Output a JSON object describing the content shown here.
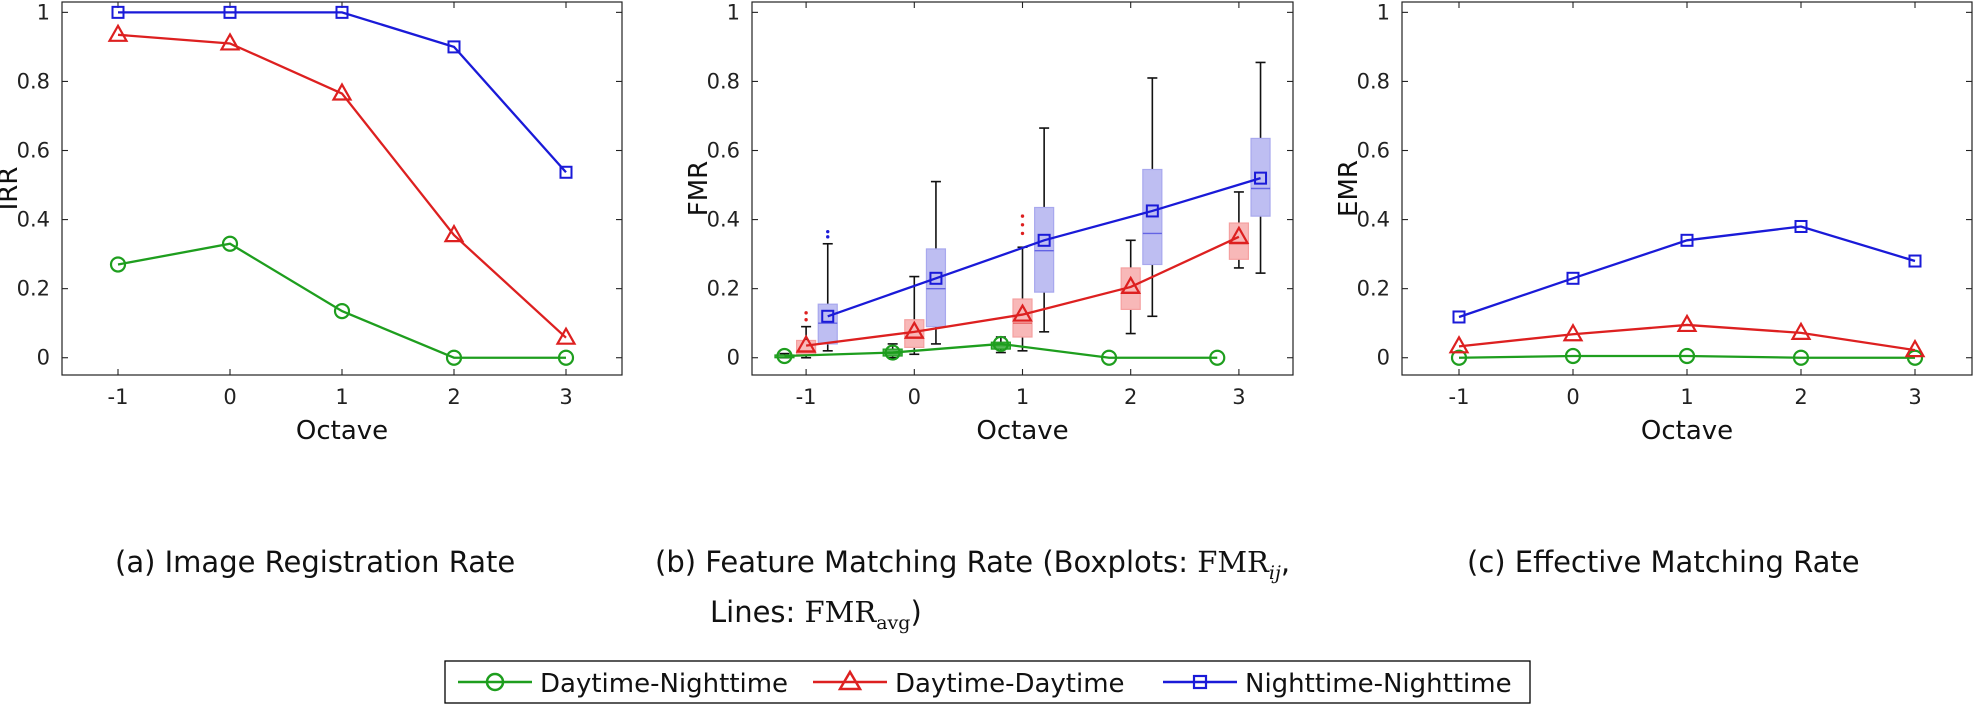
{
  "colors": {
    "Daytime-Nighttime": "#1e9e1e",
    "Daytime-Daytime": "#dd2020",
    "Nighttime-Nighttime": "#1a1ad8",
    "box_Daytime-Daytime": "#f5a0a0",
    "box_Nighttime-Nighttime": "#a8a8ee"
  },
  "captions": {
    "a": "(a) Image Registration Rate",
    "b_prefix": "(b)  Feature Matching Rate (Boxplots: ",
    "b_fmr": "FMR",
    "b_sub_ij": "ij",
    "b_comma": ",",
    "b_line2_prefix": "Lines: ",
    "b_sub_avg": "avg",
    "b_close": ")",
    "c": "(c) Effective Matching Rate"
  },
  "legend": {
    "items": [
      {
        "label": "Daytime-Nighttime",
        "marker": "circle"
      },
      {
        "label": "Daytime-Daytime",
        "marker": "triangle"
      },
      {
        "label": "Nighttime-Nighttime",
        "marker": "square"
      }
    ]
  },
  "chart_data": [
    {
      "type": "line",
      "title": "",
      "xlabel": "Octave",
      "ylabel": "IRR",
      "xlim": [
        -1.5,
        3.5
      ],
      "ylim": [
        -0.05,
        1.03
      ],
      "x": [
        -1,
        0,
        1,
        2,
        3
      ],
      "yticks": [
        0,
        0.2,
        0.4,
        0.6,
        0.8,
        1
      ],
      "series": [
        {
          "name": "Daytime-Nighttime",
          "values": [
            0.27,
            0.33,
            0.135,
            0.0,
            0.0
          ]
        },
        {
          "name": "Daytime-Daytime",
          "values": [
            0.935,
            0.91,
            0.765,
            0.355,
            0.058
          ]
        },
        {
          "name": "Nighttime-Nighttime",
          "values": [
            1.0,
            1.0,
            1.0,
            0.9,
            0.537
          ]
        }
      ]
    },
    {
      "type": "line",
      "title": "",
      "xlabel": "Octave",
      "ylabel": "FMR",
      "xlim": [
        -1.5,
        3.5
      ],
      "ylim": [
        -0.05,
        1.03
      ],
      "x": [
        -1,
        0,
        1,
        2,
        3
      ],
      "yticks": [
        0,
        0.2,
        0.4,
        0.6,
        0.8,
        1
      ],
      "series": [
        {
          "name": "Daytime-Nighttime",
          "x": [
            -1.2,
            -0.2,
            0.8,
            1.8,
            2.8
          ],
          "values": [
            0.005,
            0.015,
            0.04,
            0.0,
            0.0
          ]
        },
        {
          "name": "Daytime-Daytime",
          "x": [
            -1.0,
            0.0,
            1.0,
            2.0,
            3.0
          ],
          "values": [
            0.035,
            0.075,
            0.125,
            0.205,
            0.35
          ]
        },
        {
          "name": "Nighttime-Nighttime",
          "x": [
            -0.8,
            0.2,
            1.2,
            2.2,
            3.2
          ],
          "values": [
            0.12,
            0.23,
            0.34,
            0.425,
            0.52
          ]
        }
      ],
      "boxplots": [
        {
          "series": "Daytime-Nighttime",
          "x": -1.2,
          "min": 0.0,
          "q1": 0.0,
          "median": 0.002,
          "q3": 0.008,
          "max": 0.012,
          "outliers": []
        },
        {
          "series": "Daytime-Nighttime",
          "x": -0.2,
          "min": 0.0,
          "q1": 0.005,
          "median": 0.012,
          "q3": 0.025,
          "max": 0.04,
          "outliers": []
        },
        {
          "series": "Daytime-Nighttime",
          "x": 0.8,
          "min": 0.015,
          "q1": 0.025,
          "median": 0.035,
          "q3": 0.045,
          "max": 0.06,
          "outliers": []
        },
        {
          "series": "Daytime-Daytime",
          "x": -1.0,
          "min": 0.0,
          "q1": 0.01,
          "median": 0.02,
          "q3": 0.05,
          "max": 0.09,
          "outliers": [
            0.11,
            0.13
          ]
        },
        {
          "series": "Daytime-Daytime",
          "x": 0.0,
          "min": 0.01,
          "q1": 0.03,
          "median": 0.06,
          "q3": 0.11,
          "max": 0.235,
          "outliers": []
        },
        {
          "series": "Daytime-Daytime",
          "x": 1.0,
          "min": 0.02,
          "q1": 0.06,
          "median": 0.1,
          "q3": 0.17,
          "max": 0.32,
          "outliers": [
            0.36,
            0.385,
            0.41
          ]
        },
        {
          "series": "Daytime-Daytime",
          "x": 2.0,
          "min": 0.07,
          "q1": 0.14,
          "median": 0.19,
          "q3": 0.26,
          "max": 0.34,
          "outliers": []
        },
        {
          "series": "Daytime-Daytime",
          "x": 3.0,
          "min": 0.26,
          "q1": 0.285,
          "median": 0.33,
          "q3": 0.39,
          "max": 0.48,
          "outliers": []
        },
        {
          "series": "Nighttime-Nighttime",
          "x": -0.8,
          "min": 0.02,
          "q1": 0.04,
          "median": 0.1,
          "q3": 0.155,
          "max": 0.33,
          "outliers": [
            0.35,
            0.365
          ]
        },
        {
          "series": "Nighttime-Nighttime",
          "x": 0.2,
          "min": 0.04,
          "q1": 0.09,
          "median": 0.2,
          "q3": 0.315,
          "max": 0.51,
          "outliers": []
        },
        {
          "series": "Nighttime-Nighttime",
          "x": 1.2,
          "min": 0.075,
          "q1": 0.19,
          "median": 0.31,
          "q3": 0.435,
          "max": 0.665,
          "outliers": []
        },
        {
          "series": "Nighttime-Nighttime",
          "x": 2.2,
          "min": 0.12,
          "q1": 0.27,
          "median": 0.36,
          "q3": 0.545,
          "max": 0.81,
          "outliers": []
        },
        {
          "series": "Nighttime-Nighttime",
          "x": 3.2,
          "min": 0.245,
          "q1": 0.41,
          "median": 0.49,
          "q3": 0.635,
          "max": 0.855,
          "outliers": []
        }
      ]
    },
    {
      "type": "line",
      "title": "",
      "xlabel": "Octave",
      "ylabel": "EMR",
      "xlim": [
        -1.5,
        3.5
      ],
      "ylim": [
        -0.05,
        1.03
      ],
      "x": [
        -1,
        0,
        1,
        2,
        3
      ],
      "yticks": [
        0,
        0.2,
        0.4,
        0.6,
        0.8,
        1
      ],
      "series": [
        {
          "name": "Daytime-Nighttime",
          "values": [
            0.0,
            0.005,
            0.005,
            0.0,
            0.0
          ]
        },
        {
          "name": "Daytime-Daytime",
          "values": [
            0.033,
            0.068,
            0.095,
            0.072,
            0.022
          ]
        },
        {
          "name": "Nighttime-Nighttime",
          "values": [
            0.118,
            0.23,
            0.34,
            0.38,
            0.28
          ]
        }
      ]
    }
  ]
}
